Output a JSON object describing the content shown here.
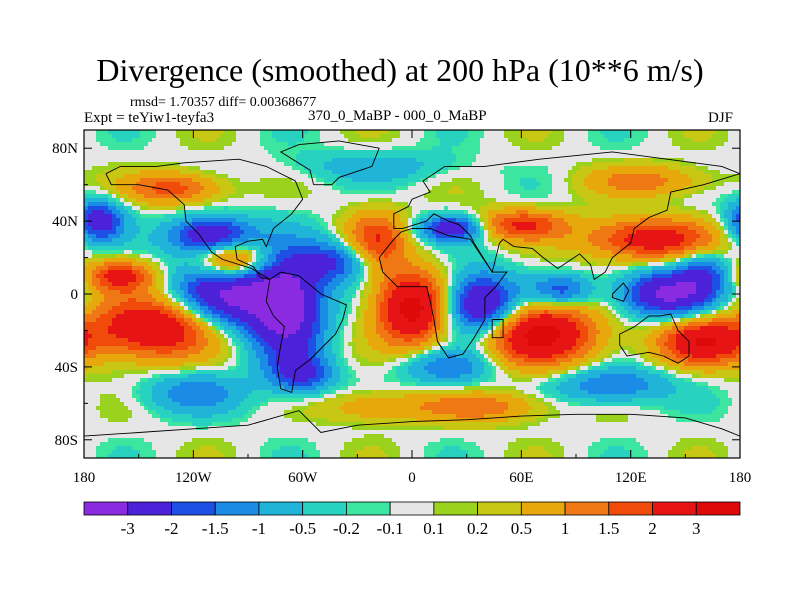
{
  "title": "Divergence (smoothed) at 200 hPa (10**6 m/s)",
  "stats": "rmsd= 1.70357 diff= 0.00368677",
  "experiment": "Expt = teYiw1-teyfa3",
  "difference_label": "370_0_MaBP - 000_0_MaBP",
  "season": "DJF",
  "chart_data": {
    "type": "heatmap",
    "projection": "cylindrical-equidistant",
    "variable": "Divergence (smoothed) at 200 hPa",
    "units": "10**6 m/s",
    "x_range": [
      -180,
      180
    ],
    "y_range": [
      -90,
      90
    ],
    "x_ticks": [
      {
        "value": -180,
        "label": "180"
      },
      {
        "value": -120,
        "label": "120W"
      },
      {
        "value": -60,
        "label": "60W"
      },
      {
        "value": 0,
        "label": "0"
      },
      {
        "value": 60,
        "label": "60E"
      },
      {
        "value": 120,
        "label": "120E"
      },
      {
        "value": 180,
        "label": "180"
      }
    ],
    "y_ticks": [
      {
        "value": 80,
        "label": "80N"
      },
      {
        "value": 40,
        "label": "40N"
      },
      {
        "value": 0,
        "label": "0"
      },
      {
        "value": -40,
        "label": "40S"
      },
      {
        "value": -80,
        "label": "80S"
      }
    ],
    "levels": [
      "-3",
      "-2",
      "-1.5",
      "-1",
      "-0.5",
      "-0.2",
      "-0.1",
      "0.1",
      "0.2",
      "0.5",
      "1",
      "1.5",
      "2",
      "3"
    ],
    "colors": [
      "#8a2be2",
      "#4b22d8",
      "#1e50e6",
      "#1a8ce6",
      "#1fb4d8",
      "#28d2c0",
      "#3ce6a0",
      "#e6e6e6",
      "#9ad21e",
      "#c8c814",
      "#e6a80a",
      "#f07814",
      "#f04b0a",
      "#e61414",
      "#dc0a0a"
    ],
    "field_features": [
      {
        "lon": -100,
        "lat": 0,
        "amp": -3.4,
        "sx": 22,
        "sy": 14
      },
      {
        "lon": -68,
        "lat": -8,
        "amp": -3.2,
        "sx": 14,
        "sy": 22
      },
      {
        "lon": -40,
        "lat": 18,
        "amp": -2.0,
        "sx": 14,
        "sy": 8
      },
      {
        "lon": -110,
        "lat": 32,
        "amp": -3.0,
        "sx": 16,
        "sy": 7
      },
      {
        "lon": 22,
        "lat": 36,
        "amp": -2.6,
        "sx": 12,
        "sy": 5
      },
      {
        "lon": 38,
        "lat": -6,
        "amp": -3.4,
        "sx": 14,
        "sy": 12
      },
      {
        "lon": 82,
        "lat": 2,
        "amp": -1.8,
        "sx": 12,
        "sy": 6
      },
      {
        "lon": 140,
        "lat": 0,
        "amp": -3.2,
        "sx": 18,
        "sy": 9
      },
      {
        "lon": 160,
        "lat": 12,
        "amp": -1.6,
        "sx": 10,
        "sy": 8
      },
      {
        "lon": -172,
        "lat": 40,
        "amp": -2.6,
        "sx": 10,
        "sy": 8
      },
      {
        "lon": -140,
        "lat": -18,
        "amp": 3.2,
        "sx": 24,
        "sy": 12
      },
      {
        "lon": -98,
        "lat": 18,
        "amp": 2.8,
        "sx": 14,
        "sy": 8
      },
      {
        "lon": -20,
        "lat": 28,
        "amp": 2.0,
        "sx": 12,
        "sy": 12
      },
      {
        "lon": 0,
        "lat": -8,
        "amp": 3.4,
        "sx": 14,
        "sy": 14
      },
      {
        "lon": 70,
        "lat": -22,
        "amp": 3.3,
        "sx": 22,
        "sy": 12
      },
      {
        "lon": 130,
        "lat": 30,
        "amp": 2.6,
        "sx": 24,
        "sy": 8
      },
      {
        "lon": 160,
        "lat": -26,
        "amp": 2.8,
        "sx": 18,
        "sy": 9
      },
      {
        "lon": -160,
        "lat": 10,
        "amp": 2.2,
        "sx": 14,
        "sy": 6
      },
      {
        "lon": -130,
        "lat": 58,
        "amp": 1.8,
        "sx": 18,
        "sy": 6
      },
      {
        "lon": 60,
        "lat": 38,
        "amp": 2.0,
        "sx": 18,
        "sy": 6
      },
      {
        "lon": -120,
        "lat": -54,
        "amp": -1.3,
        "sx": 20,
        "sy": 8
      },
      {
        "lon": -60,
        "lat": -44,
        "amp": -1.8,
        "sx": 12,
        "sy": 7
      },
      {
        "lon": 20,
        "lat": -40,
        "amp": -1.5,
        "sx": 18,
        "sy": 7
      },
      {
        "lon": 110,
        "lat": -50,
        "amp": -1.6,
        "sx": 22,
        "sy": 7
      },
      {
        "lon": 40,
        "lat": -62,
        "amp": 1.3,
        "sx": 25,
        "sy": 6
      },
      {
        "lon": -20,
        "lat": -62,
        "amp": 1.0,
        "sx": 20,
        "sy": 6
      },
      {
        "lon": 130,
        "lat": 62,
        "amp": 1.2,
        "sx": 24,
        "sy": 6
      },
      {
        "lon": -20,
        "lat": 70,
        "amp": -0.8,
        "sx": 30,
        "sy": 6
      }
    ]
  }
}
